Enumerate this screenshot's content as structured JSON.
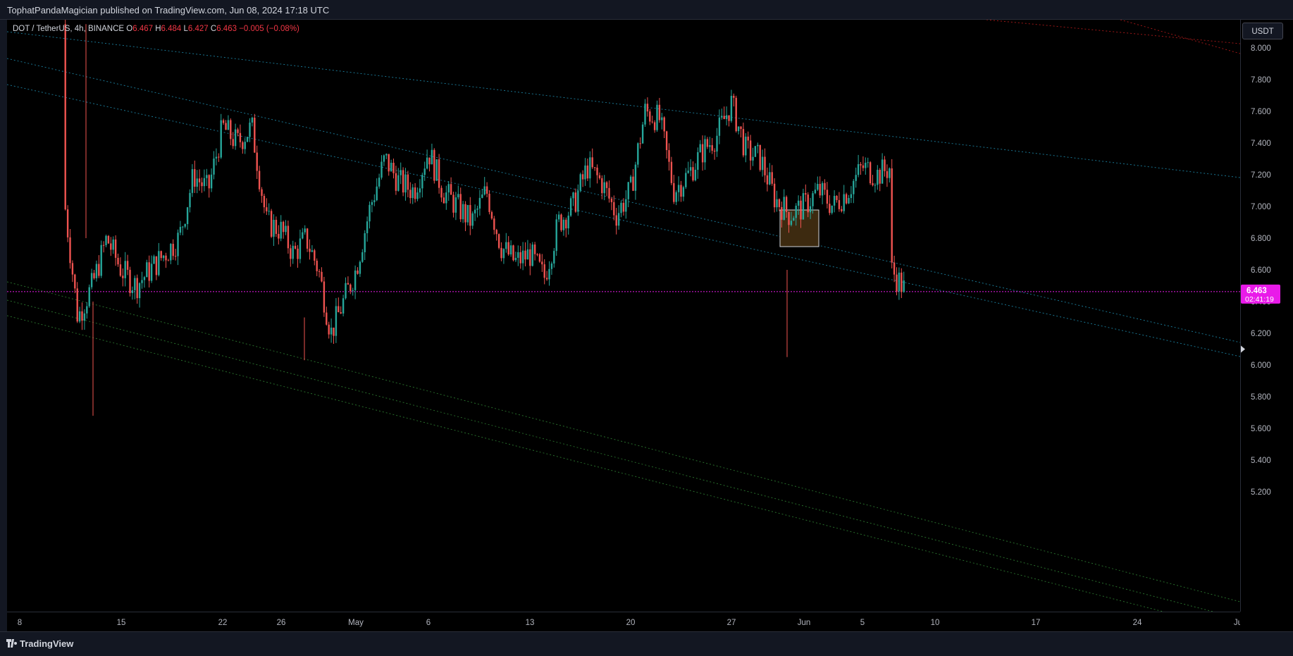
{
  "header": {
    "published_text": "TophatPandaMagician published on TradingView.com, Jun 08, 2024 17:18 UTC"
  },
  "legend": {
    "symbol": "DOT / TetherUS, 4h, BINANCE",
    "open_label": "O",
    "open": "6.467",
    "high_label": "H",
    "high": "6.484",
    "low_label": "L",
    "low": "6.427",
    "close_label": "C",
    "close": "6.463",
    "change": "−0.005 (−0.08%)"
  },
  "currency_button": "USDT",
  "price_badge": {
    "price": "6.463",
    "countdown": "02:41:19"
  },
  "footer": {
    "brand": "TradingView"
  },
  "colors": {
    "up": "#26a69a",
    "down": "#ef5350",
    "current_price": "#e91ae9",
    "channel_blue": "#1e88a8",
    "channel_red": "#b71c1c",
    "channel_green": "#2e7d32",
    "zone_fill": "#3d2a10",
    "zone_border": "#d1d4dc"
  },
  "chart_data": {
    "type": "candlestick",
    "title": "DOT / TetherUS, 4h, BINANCE",
    "ylim": [
      5.0,
      8.15
    ],
    "price_ticks": [
      "8.000",
      "7.800",
      "7.600",
      "7.400",
      "7.200",
      "7.000",
      "6.800",
      "6.600",
      "6.400",
      "6.200",
      "6.000",
      "5.800",
      "5.600",
      "5.400",
      "5.200"
    ],
    "time_ticks": [
      "8",
      "15",
      "22",
      "26",
      "May",
      "6",
      "13",
      "20",
      "27",
      "Jun",
      "5",
      "10",
      "17",
      "24",
      "Ju"
    ],
    "grid": false,
    "current_price": 6.463,
    "price_path": [
      {
        "date": "Apr 11",
        "price": 8.15
      },
      {
        "date": "Apr 11",
        "price": 7.1
      },
      {
        "date": "Apr 12",
        "price": 6.3
      },
      {
        "date": "Apr 13",
        "price": 6.5
      },
      {
        "date": "Apr 14",
        "price": 6.8
      },
      {
        "date": "Apr 15",
        "price": 6.6
      },
      {
        "date": "Apr 16",
        "price": 6.5
      },
      {
        "date": "Apr 17",
        "price": 6.6
      },
      {
        "date": "Apr 18",
        "price": 6.7
      },
      {
        "date": "Apr 19",
        "price": 6.8
      },
      {
        "date": "Apr 20",
        "price": 7.2
      },
      {
        "date": "Apr 21",
        "price": 7.1
      },
      {
        "date": "Apr 22",
        "price": 7.5
      },
      {
        "date": "Apr 23",
        "price": 7.4
      },
      {
        "date": "Apr 24",
        "price": 7.5
      },
      {
        "date": "Apr 25",
        "price": 6.9
      },
      {
        "date": "Apr 26",
        "price": 6.85
      },
      {
        "date": "Apr 27",
        "price": 6.7
      },
      {
        "date": "Apr 28",
        "price": 6.8
      },
      {
        "date": "Apr 29",
        "price": 6.6
      },
      {
        "date": "Apr 30",
        "price": 6.2
      },
      {
        "date": "May 1",
        "price": 6.6
      },
      {
        "date": "May 2",
        "price": 7.0
      },
      {
        "date": "May 3",
        "price": 7.3
      },
      {
        "date": "May 4",
        "price": 7.15
      },
      {
        "date": "May 5",
        "price": 7.1
      },
      {
        "date": "May 6",
        "price": 7.35
      },
      {
        "date": "May 7",
        "price": 7.1
      },
      {
        "date": "May 8",
        "price": 7.0
      },
      {
        "date": "May 9",
        "price": 6.9
      },
      {
        "date": "May 10",
        "price": 7.1
      },
      {
        "date": "May 11",
        "price": 6.75
      },
      {
        "date": "May 12",
        "price": 6.65
      },
      {
        "date": "May 13",
        "price": 6.7
      },
      {
        "date": "May 14",
        "price": 6.55
      },
      {
        "date": "May 15",
        "price": 6.9
      },
      {
        "date": "May 16",
        "price": 7.0
      },
      {
        "date": "May 17",
        "price": 7.25
      },
      {
        "date": "May 18",
        "price": 7.15
      },
      {
        "date": "May 19",
        "price": 6.95
      },
      {
        "date": "May 20",
        "price": 7.1
      },
      {
        "date": "May 21",
        "price": 7.6
      },
      {
        "date": "May 22",
        "price": 7.55
      },
      {
        "date": "May 23",
        "price": 7.1
      },
      {
        "date": "May 24",
        "price": 7.2
      },
      {
        "date": "May 25",
        "price": 7.35
      },
      {
        "date": "May 26",
        "price": 7.45
      },
      {
        "date": "May 27",
        "price": 7.65
      },
      {
        "date": "May 28",
        "price": 7.35
      },
      {
        "date": "May 29",
        "price": 7.3
      },
      {
        "date": "May 30",
        "price": 7.05
      },
      {
        "date": "May 31",
        "price": 6.95
      },
      {
        "date": "Jun 1",
        "price": 7.0
      },
      {
        "date": "Jun 2",
        "price": 7.1
      },
      {
        "date": "Jun 3",
        "price": 7.0
      },
      {
        "date": "Jun 4",
        "price": 7.1
      },
      {
        "date": "Jun 5",
        "price": 7.25
      },
      {
        "date": "Jun 6",
        "price": 7.2
      },
      {
        "date": "Jun 7",
        "price": 7.25
      },
      {
        "date": "Jun 7",
        "price": 6.6
      },
      {
        "date": "Jun 8",
        "price": 6.463
      }
    ]
  }
}
